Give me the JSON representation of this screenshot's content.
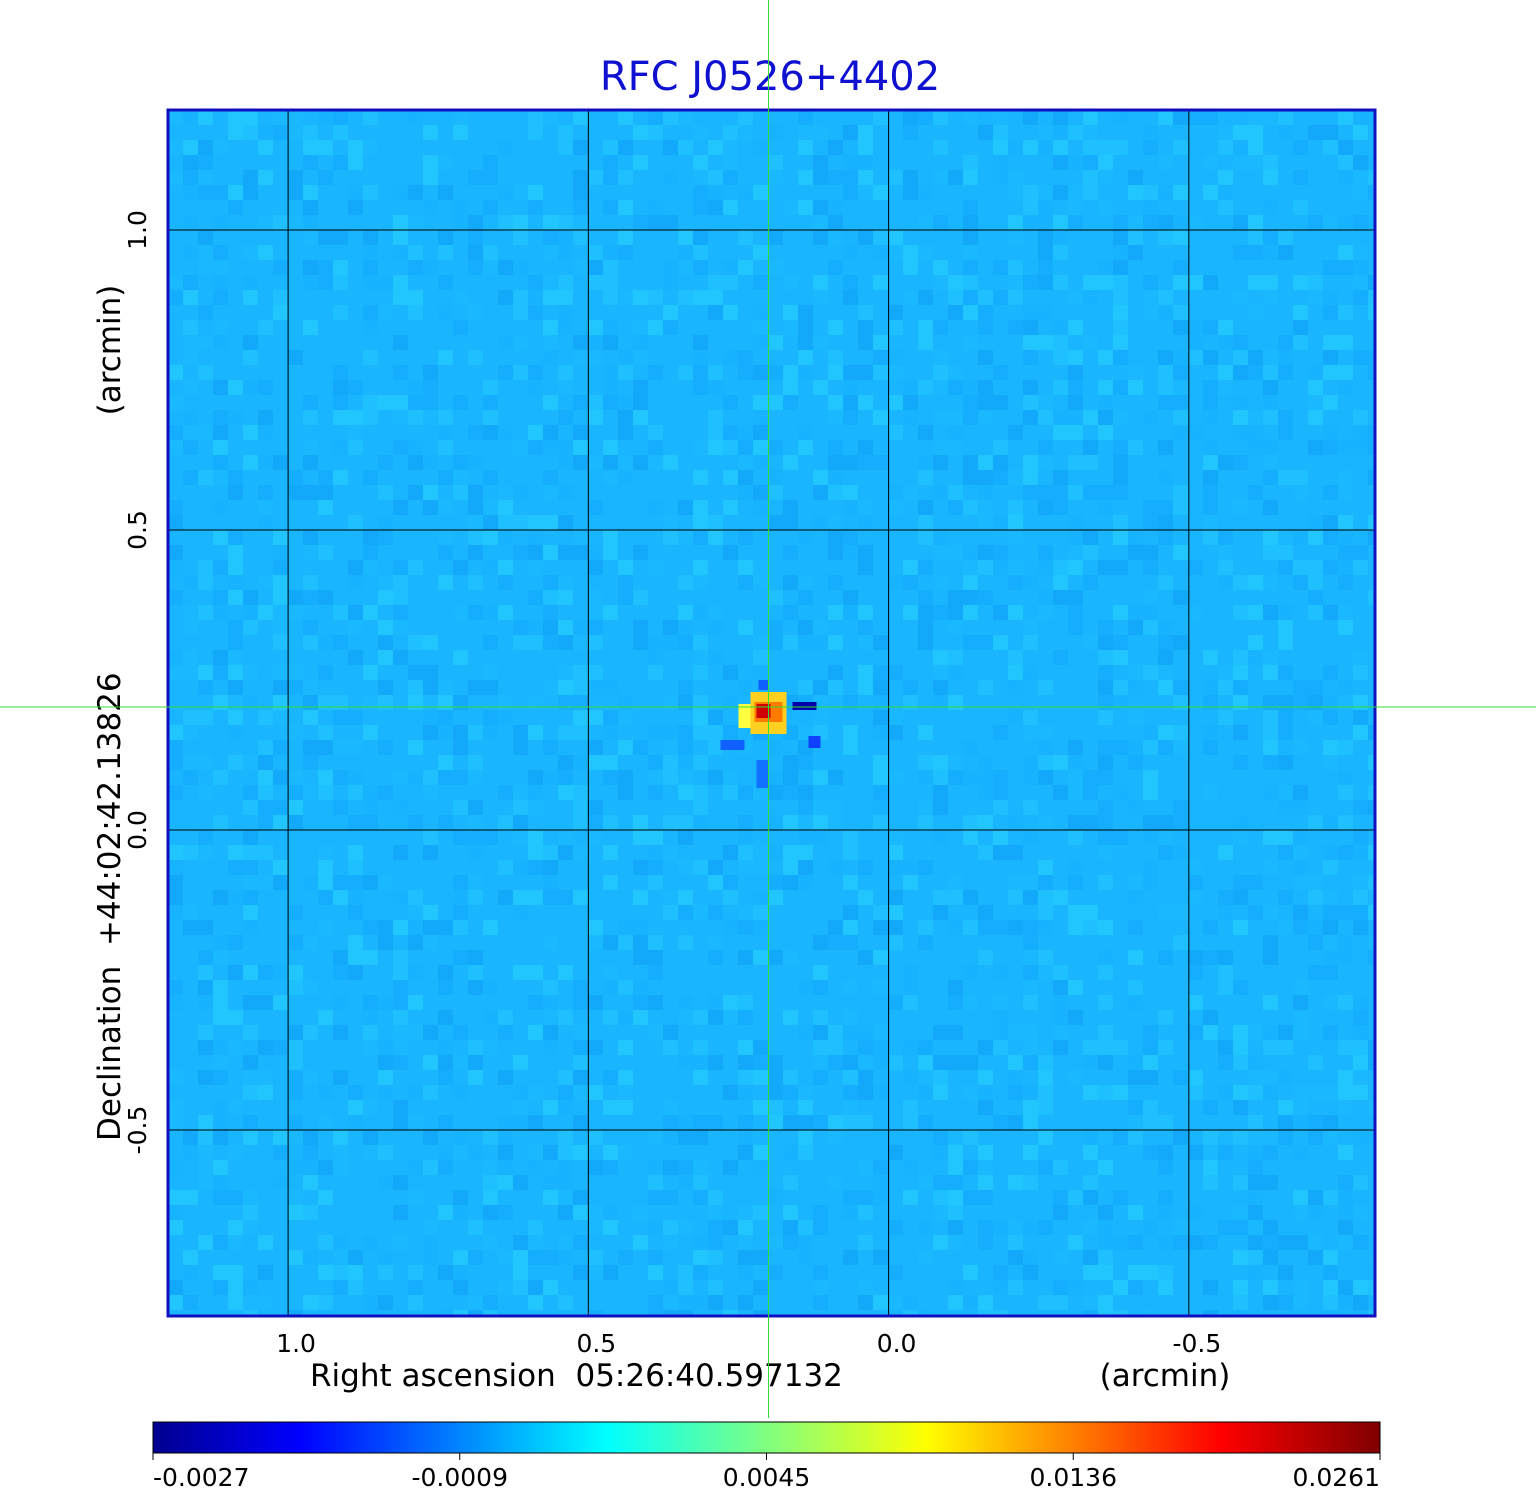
{
  "chart_data": {
    "type": "heatmap",
    "title": "RFC J0526+4402",
    "xlabel": "Right ascension  05:26:40.597132",
    "xunit": "(arcmin)",
    "ylabel": "Declination  +44:02:42.13826",
    "yunit": "(arcmin)",
    "xlim": [
      1.2,
      -0.81
    ],
    "ylim": [
      -0.81,
      1.2
    ],
    "x_ticks": [
      {
        "value": 1.0,
        "label": "1.0"
      },
      {
        "value": 0.5,
        "label": "0.5"
      },
      {
        "value": 0.0,
        "label": "0.0"
      },
      {
        "value": -0.5,
        "label": "-0.5"
      }
    ],
    "y_ticks": [
      {
        "value": 1.0,
        "label": "1.0"
      },
      {
        "value": 0.5,
        "label": "0.5"
      },
      {
        "value": 0.0,
        "label": "0.0"
      },
      {
        "value": -0.5,
        "label": "-0.5"
      }
    ],
    "grid": true,
    "crosshair": {
      "x": 0.2,
      "y": 0.205
    },
    "peak": {
      "x": 0.2,
      "y": 0.2,
      "value": 0.0261
    },
    "colormap": "jet",
    "colorbar": {
      "ticks": [
        "-0.0027",
        "-0.0009",
        "0.0045",
        "0.0136",
        "0.0261"
      ]
    },
    "colors": {
      "frame": "#1010c0",
      "title": "#1010d0",
      "crosshair": "#33dd33",
      "grid": "#000000",
      "background_map": "#19b6ff"
    }
  }
}
